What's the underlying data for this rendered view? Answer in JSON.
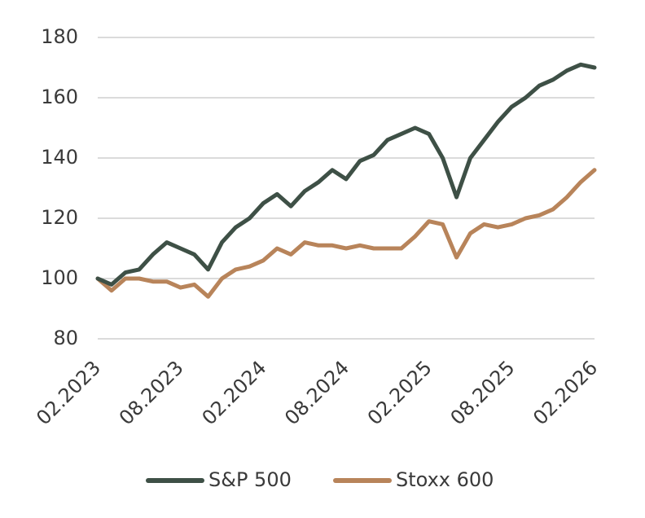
{
  "chart_data": {
    "type": "line",
    "categories": [
      "02.2023",
      null,
      null,
      null,
      null,
      null,
      "08.2023",
      null,
      null,
      null,
      null,
      null,
      "02.2024",
      null,
      null,
      null,
      null,
      null,
      "08.2024",
      null,
      null,
      null,
      null,
      null,
      "02.2025",
      null,
      null,
      null,
      null,
      null,
      "08.2025",
      null,
      null,
      null,
      null,
      null,
      "02.2026"
    ],
    "series": [
      {
        "name": "S&P 500",
        "color": "#3e5046",
        "values": [
          100,
          98,
          102,
          103,
          108,
          112,
          110,
          108,
          103,
          112,
          117,
          120,
          125,
          128,
          124,
          129,
          132,
          136,
          133,
          139,
          141,
          146,
          148,
          150,
          148,
          140,
          127,
          140,
          146,
          152,
          157,
          160,
          164,
          166,
          169,
          171,
          170
        ]
      },
      {
        "name": "Stoxx 600",
        "color": "#b8845a",
        "values": [
          100,
          96,
          100,
          100,
          99,
          99,
          97,
          98,
          94,
          100,
          103,
          104,
          106,
          110,
          108,
          112,
          111,
          111,
          110,
          111,
          110,
          110,
          110,
          114,
          119,
          118,
          107,
          115,
          118,
          117,
          118,
          120,
          121,
          123,
          127,
          132,
          136
        ]
      }
    ],
    "ylim": [
      80,
      180
    ],
    "yticks": [
      80,
      100,
      120,
      140,
      160,
      180
    ],
    "grid": true,
    "legend": "bottom"
  }
}
